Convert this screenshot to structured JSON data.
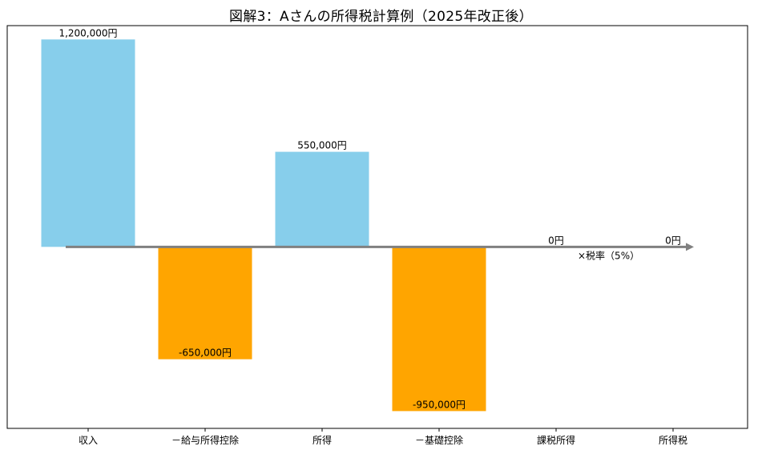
{
  "chart_data": {
    "type": "bar",
    "title": "図解3：Aさんの所得税計算例（2025年改正後）",
    "xlabel": "",
    "ylabel": "",
    "categories": [
      "収入",
      "－給与所得控除",
      "所得",
      "－基礎控除",
      "課税所得",
      "所得税"
    ],
    "values": [
      1200000,
      -650000,
      550000,
      -950000,
      0,
      0
    ],
    "data_labels": [
      "1,200,000円",
      "-650,000円",
      "550,000円",
      "-950,000円",
      "0円",
      "0円"
    ],
    "bar_colors": [
      "#87CEEB",
      "#FFA500",
      "#87CEEB",
      "#FFA500",
      "#87CEEB",
      "#87CEEB"
    ],
    "ylim": [
      -1050000,
      1280000
    ],
    "grid": false,
    "legend": "none",
    "annotation": "×税率（5%）",
    "arrow_color": "#808080"
  }
}
